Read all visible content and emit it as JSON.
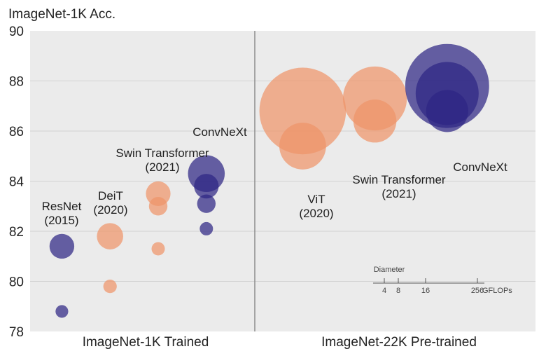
{
  "chart_data": {
    "type": "scatter",
    "ylabel": "ImageNet-1K Acc.",
    "ylim": [
      78,
      90
    ],
    "yticks": [
      "78",
      "80",
      "82",
      "84",
      "86",
      "88",
      "90"
    ],
    "grid": true,
    "panels": [
      {
        "name": "ImageNet-1K Trained"
      },
      {
        "name": "ImageNet-22K Pre-trained"
      }
    ],
    "colors": {
      "orange": "#ef946a",
      "purple": "#2e2683",
      "background": "#ebebeb",
      "divider": "#8c8c8c"
    },
    "series": [
      {
        "panel": 0,
        "color": "purple",
        "x": 1.0,
        "name": "ResNet",
        "year": "(2015)",
        "points": [
          {
            "acc": 78.8,
            "gflops": 4.1
          },
          {
            "acc": 81.4,
            "gflops": 15.6
          }
        ]
      },
      {
        "panel": 0,
        "color": "orange",
        "x": 2.0,
        "name": "DeiT",
        "year": "(2020)",
        "points": [
          {
            "acc": 79.8,
            "gflops": 4.6
          },
          {
            "acc": 81.8,
            "gflops": 17.6
          }
        ]
      },
      {
        "panel": 0,
        "color": "orange",
        "x": 3.0,
        "name": "Swin Transformer",
        "year": "(2021)",
        "points": [
          {
            "acc": 81.3,
            "gflops": 4.5
          },
          {
            "acc": 83.0,
            "gflops": 8.7
          },
          {
            "acc": 83.5,
            "gflops": 15.4
          }
        ]
      },
      {
        "panel": 0,
        "color": "purple",
        "x": 4.0,
        "name": "ConvNeXt",
        "year": "",
        "points": [
          {
            "acc": 82.1,
            "gflops": 4.5
          },
          {
            "acc": 83.1,
            "gflops": 8.7
          },
          {
            "acc": 83.8,
            "gflops": 15.4
          },
          {
            "acc": 84.3,
            "gflops": 34.4
          }
        ]
      },
      {
        "panel": 1,
        "color": "orange",
        "x": 6.0,
        "name": "ViT",
        "year": "(2020)",
        "points": [
          {
            "acc": 85.4,
            "gflops": 55.5
          },
          {
            "acc": 86.8,
            "gflops": 190.7
          }
        ]
      },
      {
        "panel": 1,
        "color": "orange",
        "x": 7.5,
        "name": "Swin Transformer",
        "year": "(2021)",
        "points": [
          {
            "acc": 86.4,
            "gflops": 47.0
          },
          {
            "acc": 87.3,
            "gflops": 103.9
          }
        ]
      },
      {
        "panel": 1,
        "color": "purple",
        "x": 9.0,
        "name": "ConvNeXt",
        "year": "",
        "points": [
          {
            "acc": 86.8,
            "gflops": 45.1
          },
          {
            "acc": 87.5,
            "gflops": 101.0
          },
          {
            "acc": 87.8,
            "gflops": 179.0
          }
        ]
      }
    ],
    "size_legend": {
      "title": "Diameter",
      "ticks": [
        "4",
        "8",
        "16",
        "256"
      ],
      "tick_values": [
        4,
        8,
        16,
        256
      ],
      "unit": "GFLOPs"
    }
  }
}
